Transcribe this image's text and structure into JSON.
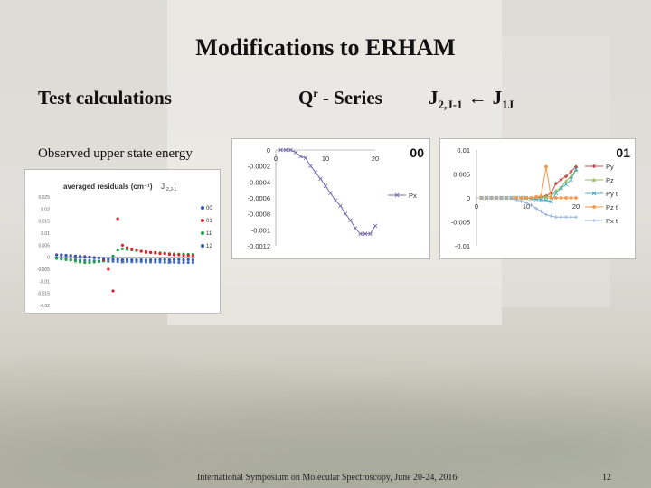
{
  "slide": {
    "title": "Modifications to ERHAM",
    "subtitle_left": "Test calculations",
    "subtitle_mid_q": "Q",
    "subtitle_mid_sup": "r",
    "subtitle_mid_rest": " - Series",
    "subtitle_right_j1": "J",
    "subtitle_right_sub1": "2,J-1",
    "subtitle_right_arrow": "←",
    "subtitle_right_j2": "J",
    "subtitle_right_sub2": "1J",
    "note": "Observed upper state energy",
    "footer": "International Symposium on Molecular Spectroscopy, June 20-24, 2016",
    "page_number": "12"
  },
  "colors": {
    "blue": "#2f5bb7",
    "red": "#e0202a",
    "green": "#22a24a",
    "px_purple": "#7b6cb3",
    "py": "#c0504d",
    "pz": "#9bbb59",
    "pyt": "#4bacc6",
    "pzt": "#f79646",
    "pxt": "#95b3d7"
  },
  "chart_data": [
    {
      "type": "scatter",
      "title": "averaged residuals (cm⁻¹)",
      "title_tag": "J",
      "title_tag_sub": "2,J-1",
      "ylim": [
        -0.02,
        0.025
      ],
      "yticks": [
        "0.025",
        "0.02",
        "0.015",
        "0.01",
        "0.005",
        "0",
        "-0.005",
        "-0.01",
        "-0.015",
        "-0.02"
      ],
      "xticks": [
        "5",
        "15",
        "25"
      ],
      "series": [
        {
          "name": "00",
          "x": [
            1,
            2,
            3,
            4,
            5,
            6,
            7,
            8,
            9,
            10,
            11,
            12,
            13,
            14,
            15,
            16,
            17,
            18,
            19,
            20,
            21,
            22,
            23,
            24,
            25,
            26,
            27,
            28,
            29,
            30
          ],
          "y": [
            0.001,
            0.001,
            0.0008,
            0.0007,
            0.0005,
            0.0003,
            0.0002,
            0,
            -0.0002,
            -0.0003,
            -0.0005,
            -0.0006,
            -0.0008,
            -0.0009,
            -0.001,
            -0.001,
            -0.0011,
            -0.0011,
            -0.0011,
            -0.0012,
            -0.0011,
            -0.0011,
            -0.001,
            -0.001,
            -0.0011,
            -0.001,
            -0.001,
            -0.0011,
            -0.001,
            -0.0011
          ]
        },
        {
          "name": "01",
          "x": [
            1,
            2,
            3,
            4,
            5,
            6,
            7,
            8,
            9,
            10,
            11,
            12,
            13,
            14,
            15,
            16,
            17,
            18,
            19,
            20,
            21,
            22,
            23,
            24,
            25,
            26,
            27,
            28,
            29,
            30
          ],
          "y": [
            0.001,
            0.0008,
            0.0007,
            0.0007,
            0.0005,
            0.0004,
            0.0003,
            0.0001,
            -0.0001,
            -0.0002,
            -0.001,
            -0.005,
            -0.014,
            0.016,
            0.005,
            0.004,
            0.0035,
            0.003,
            0.0025,
            0.002,
            0.002,
            0.0018,
            0.0015,
            0.0015,
            0.0012,
            0.001,
            0.001,
            0.0008,
            0.0008,
            0.0007
          ]
        },
        {
          "name": "11",
          "x": [
            1,
            2,
            3,
            4,
            5,
            6,
            7,
            8,
            9,
            10,
            11,
            12,
            13,
            14,
            15,
            16,
            17,
            18,
            19,
            20,
            21,
            22,
            23,
            24,
            25,
            26,
            27,
            28,
            29,
            30
          ],
          "y": [
            -0.0005,
            -0.0008,
            -0.001,
            -0.0012,
            -0.0015,
            -0.002,
            -0.0022,
            -0.0022,
            -0.002,
            -0.0018,
            -0.0015,
            -0.001,
            0.0005,
            0.003,
            0.0035,
            0.0032,
            0.003,
            0.0028,
            0.0025,
            0.0024,
            0.002,
            0.002,
            0.0018,
            0.0017,
            0.0015,
            0.0014,
            0.0013,
            0.0013,
            0.0012,
            0.0012
          ]
        },
        {
          "name": "12",
          "x": [
            1,
            2,
            3,
            4,
            5,
            6,
            7,
            8,
            9,
            10,
            11,
            12,
            13,
            14,
            15,
            16,
            17,
            18,
            19,
            20,
            21,
            22,
            23,
            24,
            25,
            26,
            27,
            28,
            29,
            30
          ],
          "y": [
            -0.0002,
            -0.0004,
            -0.0006,
            -0.0008,
            -0.001,
            -0.0012,
            -0.0013,
            -0.0014,
            -0.0015,
            -0.0016,
            -0.0016,
            -0.0017,
            -0.0017,
            -0.0018,
            -0.0018,
            -0.0018,
            -0.0019,
            -0.0019,
            -0.0019,
            -0.002,
            -0.002,
            -0.002,
            -0.002,
            -0.0021,
            -0.0021,
            -0.0021,
            -0.0022,
            -0.0022,
            -0.0022,
            -0.0022
          ]
        }
      ]
    },
    {
      "type": "line",
      "label": "00",
      "ylim": [
        -0.0012,
        0
      ],
      "yticks": [
        "0",
        "-0.0002",
        "-0.0004",
        "-0.0006",
        "-0.0008",
        "-0.001",
        "-0.0012"
      ],
      "xlim": [
        0,
        20
      ],
      "xticks": [
        "0",
        "10",
        "20"
      ],
      "series": [
        {
          "name": "Px",
          "x": [
            1,
            2,
            3,
            4,
            5,
            6,
            7,
            8,
            9,
            10,
            11,
            12,
            13,
            14,
            15,
            16,
            17,
            18,
            19,
            20
          ],
          "y": [
            0,
            0,
            0,
            -3e-05,
            -8e-05,
            -0.0001,
            -0.0002,
            -0.00028,
            -0.00036,
            -0.00045,
            -0.00054,
            -0.00063,
            -0.0007,
            -0.0008,
            -0.00088,
            -0.00098,
            -0.00105,
            -0.00105,
            -0.00105,
            -0.00095
          ]
        }
      ]
    },
    {
      "type": "line",
      "label": "01",
      "ylim": [
        -0.01,
        0.01
      ],
      "yticks": [
        "0.01",
        "0.005",
        "0",
        "-0.005",
        "-0.01"
      ],
      "xlim": [
        0,
        20
      ],
      "xticks": [
        "0",
        "10",
        "20"
      ],
      "series": [
        {
          "name": "Py",
          "x": [
            1,
            2,
            3,
            4,
            5,
            6,
            7,
            8,
            9,
            10,
            11,
            12,
            13,
            14,
            15,
            16,
            17,
            18,
            19,
            20
          ],
          "y": [
            0,
            0,
            0,
            0,
            0,
            0,
            0,
            0,
            0,
            0,
            0,
            0,
            0.0003,
            0.0004,
            0.001,
            0.003,
            0.0038,
            0.0045,
            0.0055,
            0.0065
          ]
        },
        {
          "name": "Pz",
          "x": [
            1,
            2,
            3,
            4,
            5,
            6,
            7,
            8,
            9,
            10,
            11,
            12,
            13,
            14,
            15,
            16,
            17,
            18,
            19,
            20
          ],
          "y": [
            0,
            0,
            0,
            0,
            0,
            0,
            0,
            0,
            0,
            0,
            0,
            0,
            0,
            0.0002,
            0.0004,
            0.0015,
            0.0022,
            0.0035,
            0.0045,
            0.0058
          ]
        },
        {
          "name": "Py t",
          "x": [
            1,
            2,
            3,
            4,
            5,
            6,
            7,
            8,
            9,
            10,
            11,
            12,
            13,
            14,
            15,
            16,
            17,
            18,
            19,
            20
          ],
          "y": [
            0,
            0,
            0,
            0,
            0,
            0,
            0,
            0,
            0,
            0,
            -0.0002,
            -0.0003,
            -0.0004,
            -0.0005,
            -0.0008,
            0.001,
            0.002,
            0.0028,
            0.0038,
            0.006
          ]
        },
        {
          "name": "Pz t",
          "x": [
            1,
            2,
            3,
            4,
            5,
            6,
            7,
            8,
            9,
            10,
            11,
            12,
            13,
            14,
            15,
            16,
            17,
            18,
            19,
            20
          ],
          "y": [
            0,
            0,
            0,
            0,
            0,
            0,
            0,
            0,
            0,
            0,
            0,
            0.0002,
            0.0004,
            0.0065,
            0,
            0,
            0,
            0,
            0,
            0
          ]
        },
        {
          "name": "Px t",
          "x": [
            1,
            2,
            3,
            4,
            5,
            6,
            7,
            8,
            9,
            10,
            11,
            12,
            13,
            14,
            15,
            16,
            17,
            18,
            19,
            20
          ],
          "y": [
            0,
            0,
            0,
            0,
            0,
            0,
            0,
            -0.0004,
            -0.0007,
            -0.001,
            -0.0015,
            -0.0022,
            -0.0028,
            -0.0035,
            -0.0038,
            -0.004,
            -0.004,
            -0.004,
            -0.004,
            -0.004
          ]
        }
      ]
    }
  ]
}
